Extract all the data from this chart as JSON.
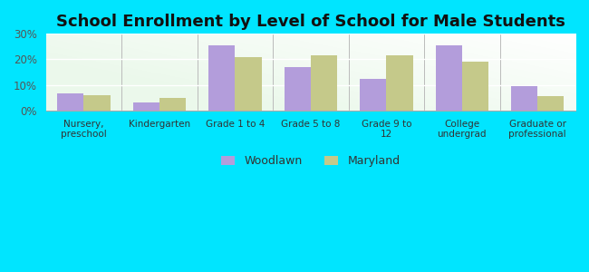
{
  "title": "School Enrollment by Level of School for Male Students",
  "categories": [
    "Nursery,\npreschool",
    "Kindergarten",
    "Grade 1 to 4",
    "Grade 5 to 8",
    "Grade 9 to\n12",
    "College\nundergrad",
    "Graduate or\nprofessional"
  ],
  "woodlawn": [
    6.5,
    3.0,
    25.5,
    17.0,
    12.5,
    25.5,
    9.5
  ],
  "maryland": [
    6.0,
    5.0,
    21.0,
    21.5,
    21.5,
    19.0,
    5.5
  ],
  "woodlawn_color": "#b39ddb",
  "maryland_color": "#c5c98a",
  "background_color": "#00e5ff",
  "ylim": [
    0,
    30
  ],
  "yticks": [
    0,
    10,
    20,
    30
  ],
  "ytick_labels": [
    "0%",
    "10%",
    "20%",
    "30%"
  ],
  "title_fontsize": 13,
  "legend_labels": [
    "Woodlawn",
    "Maryland"
  ],
  "bar_width": 0.35
}
